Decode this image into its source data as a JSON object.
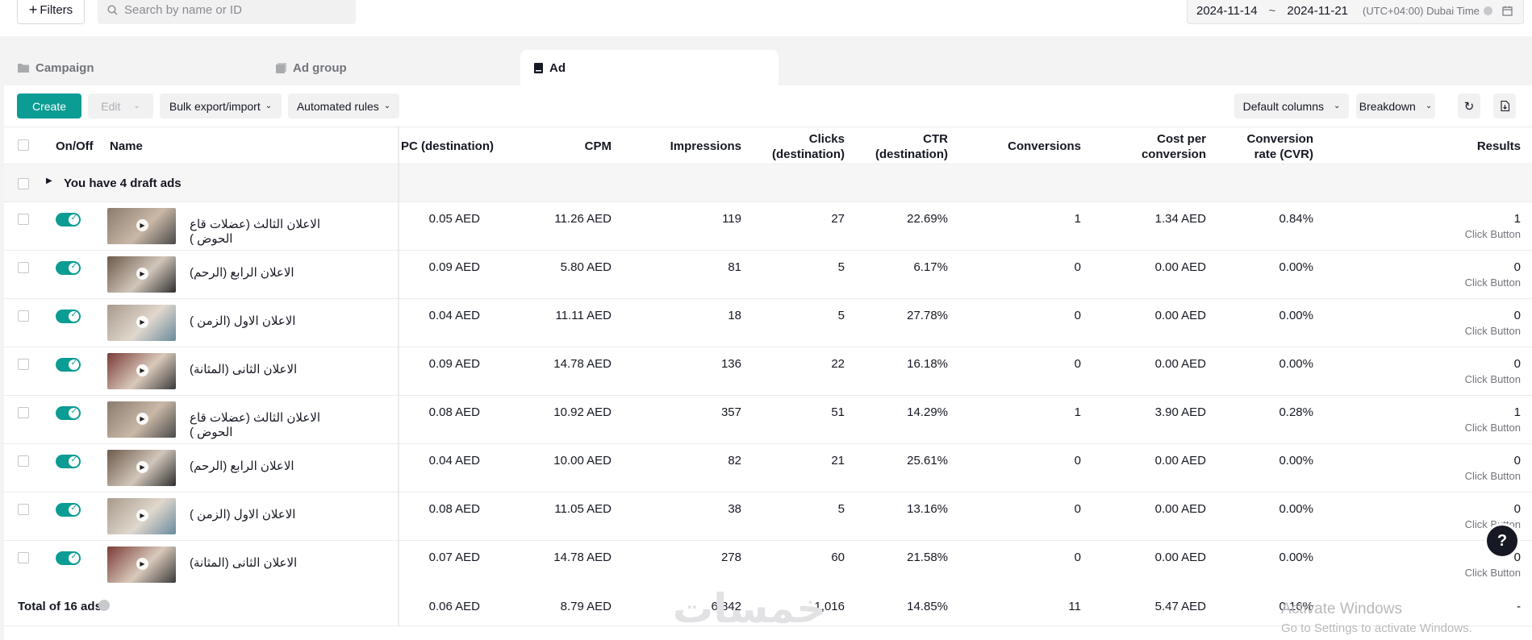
{
  "topbar": {
    "filters_label": "Filters",
    "search_placeholder": "Search by name or ID",
    "date_start": "2024-11-14",
    "date_sep": "~",
    "date_end": "2024-11-21",
    "timezone": "(UTC+04:00) Dubai Time"
  },
  "tabs": [
    {
      "label": "Campaign",
      "icon": "folder-icon"
    },
    {
      "label": "Ad group",
      "icon": "adgroup-icon"
    },
    {
      "label": "Ad",
      "icon": "ad-icon",
      "active": true
    }
  ],
  "toolbar": {
    "create": "Create",
    "edit": "Edit",
    "bulk": "Bulk export/import",
    "automated": "Automated rules",
    "default_columns": "Default columns",
    "breakdown": "Breakdown"
  },
  "columns": {
    "onoff": "On/Off",
    "name": "Name",
    "cpc": "PC (destination)",
    "cpm": "CPM",
    "impressions": "Impressions",
    "clicks_1": "Clicks",
    "clicks_2": "(destination)",
    "ctr_1": "CTR",
    "ctr_2": "(destination)",
    "conversions": "Conversions",
    "cpconv_1": "Cost per",
    "cpconv_2": "conversion",
    "cvr_1": "Conversion",
    "cvr_2": "rate (CVR)",
    "results": "Results"
  },
  "draft_label": "You have 4 draft ads",
  "rows": [
    {
      "name": "الاعلان الثالث (عضلات قاع الحوض )",
      "cpc": "0.05 AED",
      "cpm": "11.26 AED",
      "impressions": "119",
      "clicks": "27",
      "ctr": "22.69%",
      "conversions": "1",
      "cpconv": "1.34 AED",
      "cvr": "0.84%",
      "results": "1",
      "results_sub": "Click Button"
    },
    {
      "name": "الاعلان الرابع (الرحم)",
      "cpc": "0.09 AED",
      "cpm": "5.80 AED",
      "impressions": "81",
      "clicks": "5",
      "ctr": "6.17%",
      "conversions": "0",
      "cpconv": "0.00 AED",
      "cvr": "0.00%",
      "results": "0",
      "results_sub": "Click Button"
    },
    {
      "name": "الاعلان الاول (الزمن )",
      "cpc": "0.04 AED",
      "cpm": "11.11 AED",
      "impressions": "18",
      "clicks": "5",
      "ctr": "27.78%",
      "conversions": "0",
      "cpconv": "0.00 AED",
      "cvr": "0.00%",
      "results": "0",
      "results_sub": "Click Button"
    },
    {
      "name": "الاعلان الثانى (المثانة)",
      "cpc": "0.09 AED",
      "cpm": "14.78 AED",
      "impressions": "136",
      "clicks": "22",
      "ctr": "16.18%",
      "conversions": "0",
      "cpconv": "0.00 AED",
      "cvr": "0.00%",
      "results": "0",
      "results_sub": "Click Button"
    },
    {
      "name": "الاعلان الثالث (عضلات قاع الحوض )",
      "cpc": "0.08 AED",
      "cpm": "10.92 AED",
      "impressions": "357",
      "clicks": "51",
      "ctr": "14.29%",
      "conversions": "1",
      "cpconv": "3.90 AED",
      "cvr": "0.28%",
      "results": "1",
      "results_sub": "Click Button"
    },
    {
      "name": "الاعلان الرابع (الرحم)",
      "cpc": "0.04 AED",
      "cpm": "10.00 AED",
      "impressions": "82",
      "clicks": "21",
      "ctr": "25.61%",
      "conversions": "0",
      "cpconv": "0.00 AED",
      "cvr": "0.00%",
      "results": "0",
      "results_sub": "Click Button"
    },
    {
      "name": "الاعلان الاول (الزمن )",
      "cpc": "0.08 AED",
      "cpm": "11.05 AED",
      "impressions": "38",
      "clicks": "5",
      "ctr": "13.16%",
      "conversions": "0",
      "cpconv": "0.00 AED",
      "cvr": "0.00%",
      "results": "0",
      "results_sub": "Click Button"
    },
    {
      "name": "الاعلان الثانى (المثانة)",
      "cpc": "0.07 AED",
      "cpm": "14.78 AED",
      "impressions": "278",
      "clicks": "60",
      "ctr": "21.58%",
      "conversions": "0",
      "cpconv": "0.00 AED",
      "cvr": "0.00%",
      "results": "0",
      "results_sub": "Click Button"
    }
  ],
  "total": {
    "label": "Total of 16 ads",
    "cpc": "0.06 AED",
    "cpm": "8.79 AED",
    "impressions": "6,842",
    "clicks": "1,016",
    "ctr": "14.85%",
    "conversions": "11",
    "cpconv": "5.47 AED",
    "cvr": "0.16%",
    "results": "-"
  },
  "overlay": {
    "activate_title": "Activate Windows",
    "activate_sub": "Go to Settings to activate Windows.",
    "watermark": "خمسات"
  },
  "colors": {
    "accent": "#0b9c93"
  }
}
